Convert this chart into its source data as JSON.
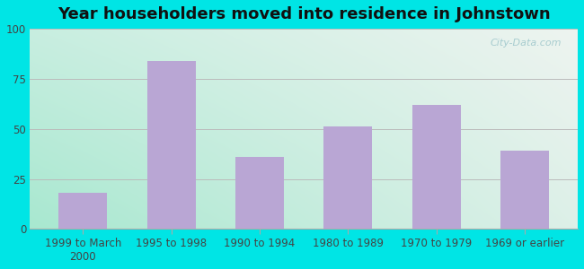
{
  "title": "Year householders moved into residence in Johnstown",
  "categories": [
    "1999 to March\n2000",
    "1995 to 1998",
    "1990 to 1994",
    "1980 to 1989",
    "1970 to 1979",
    "1969 or earlier"
  ],
  "values": [
    18,
    84,
    36,
    51,
    62,
    39
  ],
  "bar_color": "#b9a6d4",
  "background_outer": "#00e5e5",
  "background_inner_topleft": "#c8eee0",
  "background_inner_topright": "#eef4f0",
  "background_inner_bottomleft": "#a8e8d0",
  "background_inner_bottomright": "#ddf0e8",
  "ylim": [
    0,
    100
  ],
  "yticks": [
    0,
    25,
    50,
    75,
    100
  ],
  "grid_color": "#bbbbbb",
  "title_fontsize": 13,
  "tick_fontsize": 8.5,
  "watermark_text": "City-Data.com",
  "watermark_color": "#a0c8cc"
}
